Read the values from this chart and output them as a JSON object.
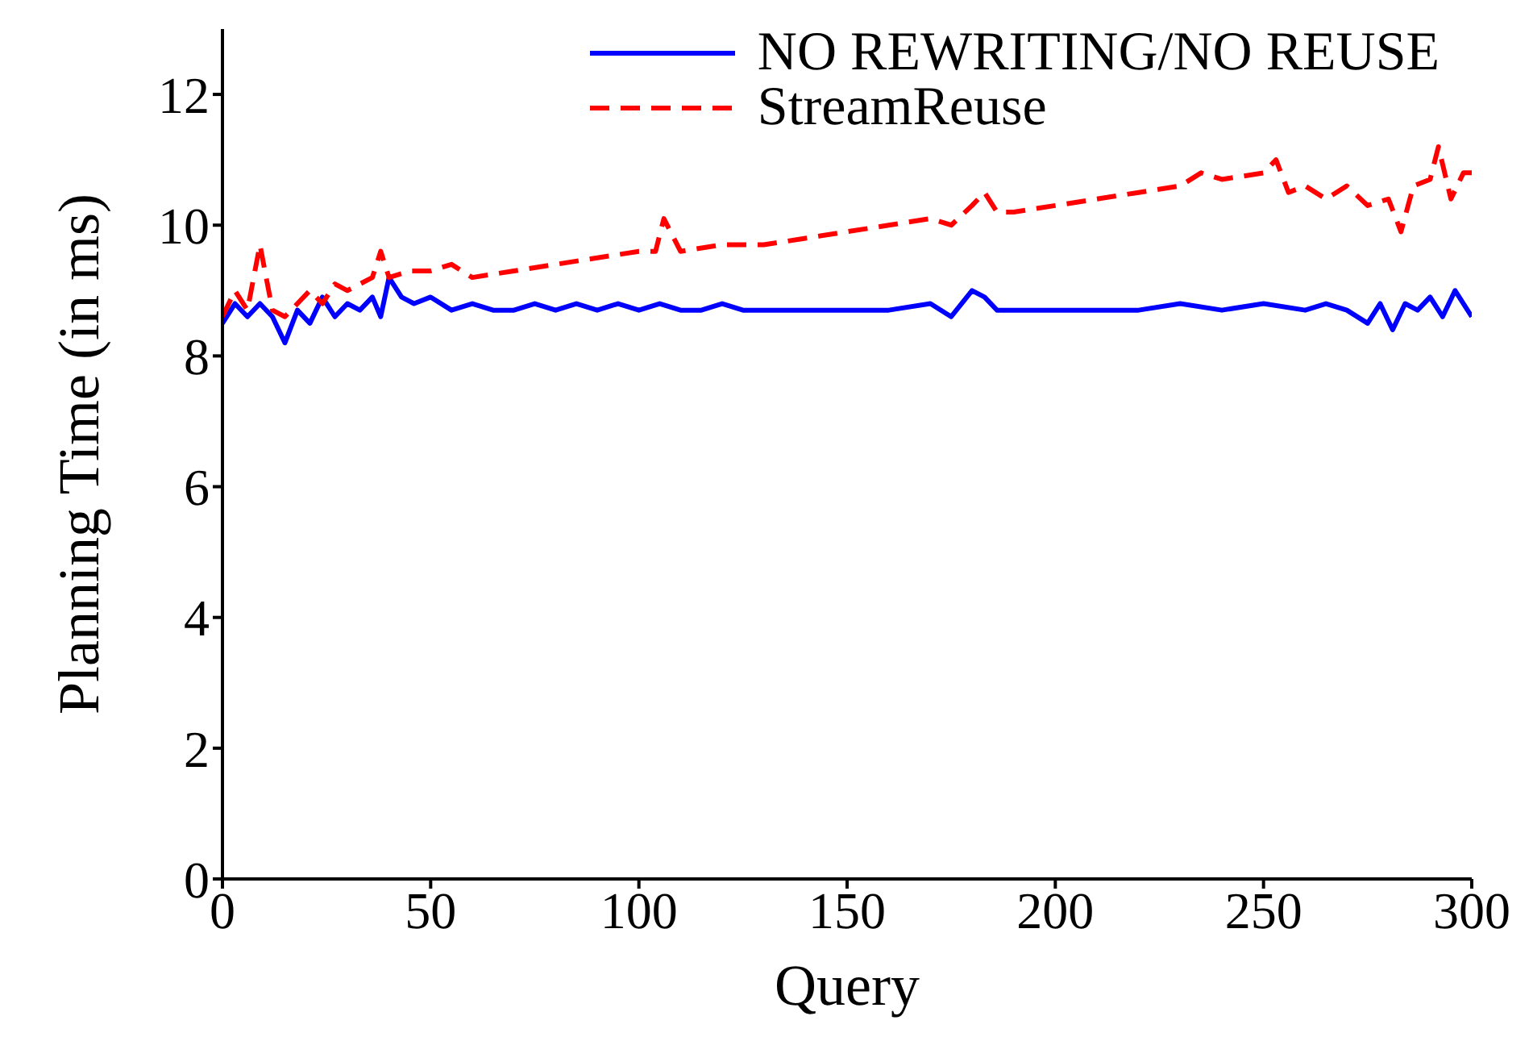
{
  "chart_data": {
    "type": "line",
    "xlabel": "Query",
    "ylabel": "Planning Time (in ms)",
    "xlim": [
      0,
      300
    ],
    "xticks": [
      0,
      50,
      100,
      150,
      200,
      250,
      300
    ],
    "ylim": [
      0,
      13
    ],
    "yticks": [
      0,
      2,
      4,
      6,
      8,
      10,
      12
    ],
    "legend": "top right",
    "grid": false,
    "marker": "none",
    "series": [
      {
        "name": "NO REWRITING/NO REUSE",
        "color": "#0000ff",
        "line_style": "solid",
        "x": [
          0,
          3,
          6,
          9,
          12,
          15,
          18,
          21,
          24,
          27,
          30,
          33,
          36,
          38,
          40,
          43,
          46,
          50,
          55,
          60,
          65,
          70,
          75,
          80,
          85,
          90,
          95,
          100,
          105,
          110,
          115,
          120,
          125,
          130,
          140,
          150,
          160,
          170,
          175,
          180,
          183,
          186,
          190,
          200,
          210,
          220,
          230,
          240,
          250,
          260,
          265,
          270,
          275,
          278,
          281,
          284,
          287,
          290,
          293,
          296,
          300
        ],
        "values": [
          8.5,
          8.8,
          8.6,
          8.8,
          8.6,
          8.2,
          8.7,
          8.5,
          8.9,
          8.6,
          8.8,
          8.7,
          8.9,
          8.6,
          9.2,
          8.9,
          8.8,
          8.9,
          8.7,
          8.8,
          8.7,
          8.7,
          8.8,
          8.7,
          8.8,
          8.7,
          8.8,
          8.7,
          8.8,
          8.7,
          8.7,
          8.8,
          8.7,
          8.7,
          8.7,
          8.7,
          8.7,
          8.8,
          8.6,
          9.0,
          8.9,
          8.7,
          8.7,
          8.7,
          8.7,
          8.7,
          8.8,
          8.7,
          8.8,
          8.7,
          8.8,
          8.7,
          8.5,
          8.8,
          8.4,
          8.8,
          8.7,
          8.9,
          8.6,
          9.0,
          8.6
        ]
      },
      {
        "name": "StreamReuse",
        "color": "#ff0000",
        "line_style": "dashed",
        "x": [
          0,
          3,
          6,
          9,
          12,
          15,
          18,
          21,
          24,
          27,
          30,
          33,
          36,
          38,
          40,
          45,
          50,
          55,
          60,
          70,
          80,
          90,
          100,
          104,
          106,
          110,
          120,
          130,
          140,
          150,
          160,
          170,
          175,
          180,
          183,
          186,
          190,
          200,
          210,
          220,
          230,
          235,
          240,
          250,
          253,
          256,
          260,
          265,
          270,
          275,
          280,
          283,
          286,
          290,
          292,
          295,
          298,
          300
        ],
        "values": [
          8.6,
          9.0,
          8.7,
          9.7,
          8.7,
          8.6,
          8.8,
          9.0,
          8.8,
          9.1,
          9.0,
          9.1,
          9.2,
          9.6,
          9.2,
          9.3,
          9.3,
          9.4,
          9.2,
          9.3,
          9.4,
          9.5,
          9.6,
          9.6,
          10.1,
          9.6,
          9.7,
          9.7,
          9.8,
          9.9,
          10.0,
          10.1,
          10.0,
          10.3,
          10.5,
          10.2,
          10.2,
          10.3,
          10.4,
          10.5,
          10.6,
          10.8,
          10.7,
          10.8,
          11.0,
          10.5,
          10.6,
          10.4,
          10.6,
          10.3,
          10.4,
          9.9,
          10.6,
          10.7,
          11.2,
          10.4,
          10.8,
          10.8
        ]
      }
    ]
  }
}
